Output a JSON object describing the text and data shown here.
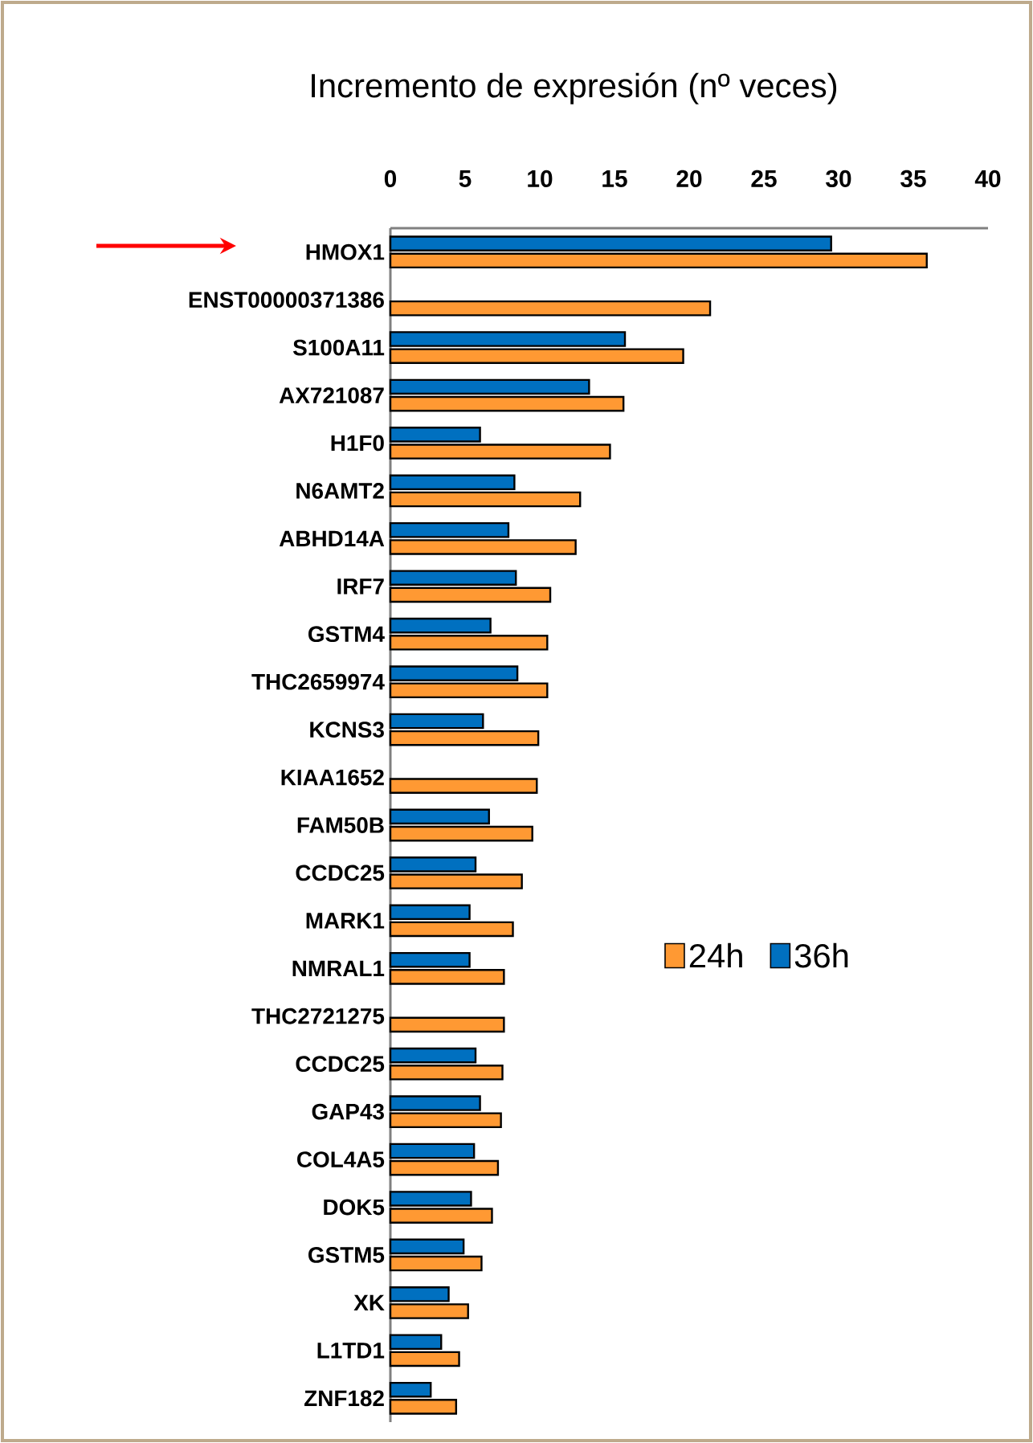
{
  "chart_data": {
    "type": "bar",
    "orientation": "horizontal",
    "title": "Incremento de expresión (nº veces)",
    "categories": [
      "HMOX1",
      "ENST00000371386",
      "S100A11",
      "AX721087",
      "H1F0",
      "N6AMT2",
      "ABHD14A",
      "IRF7",
      "GSTM4",
      "THC2659974",
      "KCNS3",
      "KIAA1652",
      "FAM50B",
      "CCDC25",
      "MARK1",
      "NMRAL1",
      "THC2721275",
      "CCDC25",
      "GAP43",
      "COL4A5",
      "DOK5",
      "GSTM5",
      "XK",
      "L1TD1",
      "ZNF182"
    ],
    "series": [
      {
        "name": "24h",
        "color": "#ff9933",
        "values": [
          35.9,
          21.4,
          19.6,
          15.6,
          14.7,
          12.7,
          12.4,
          10.7,
          10.5,
          10.5,
          9.9,
          9.8,
          9.5,
          8.8,
          8.2,
          7.6,
          7.6,
          7.5,
          7.4,
          7.2,
          6.8,
          6.1,
          5.2,
          4.6,
          4.4
        ]
      },
      {
        "name": "36h",
        "color": "#0070c0",
        "values": [
          29.5,
          null,
          15.7,
          13.3,
          6.0,
          8.3,
          7.9,
          8.4,
          6.7,
          8.5,
          6.2,
          null,
          6.6,
          5.7,
          5.3,
          5.3,
          null,
          5.7,
          6.0,
          5.6,
          5.4,
          4.9,
          3.9,
          3.4,
          2.7
        ]
      }
    ],
    "xlim": [
      0,
      40
    ],
    "xticks": [
      0,
      5,
      10,
      15,
      20,
      25,
      30,
      35,
      40
    ],
    "legend": "right"
  }
}
